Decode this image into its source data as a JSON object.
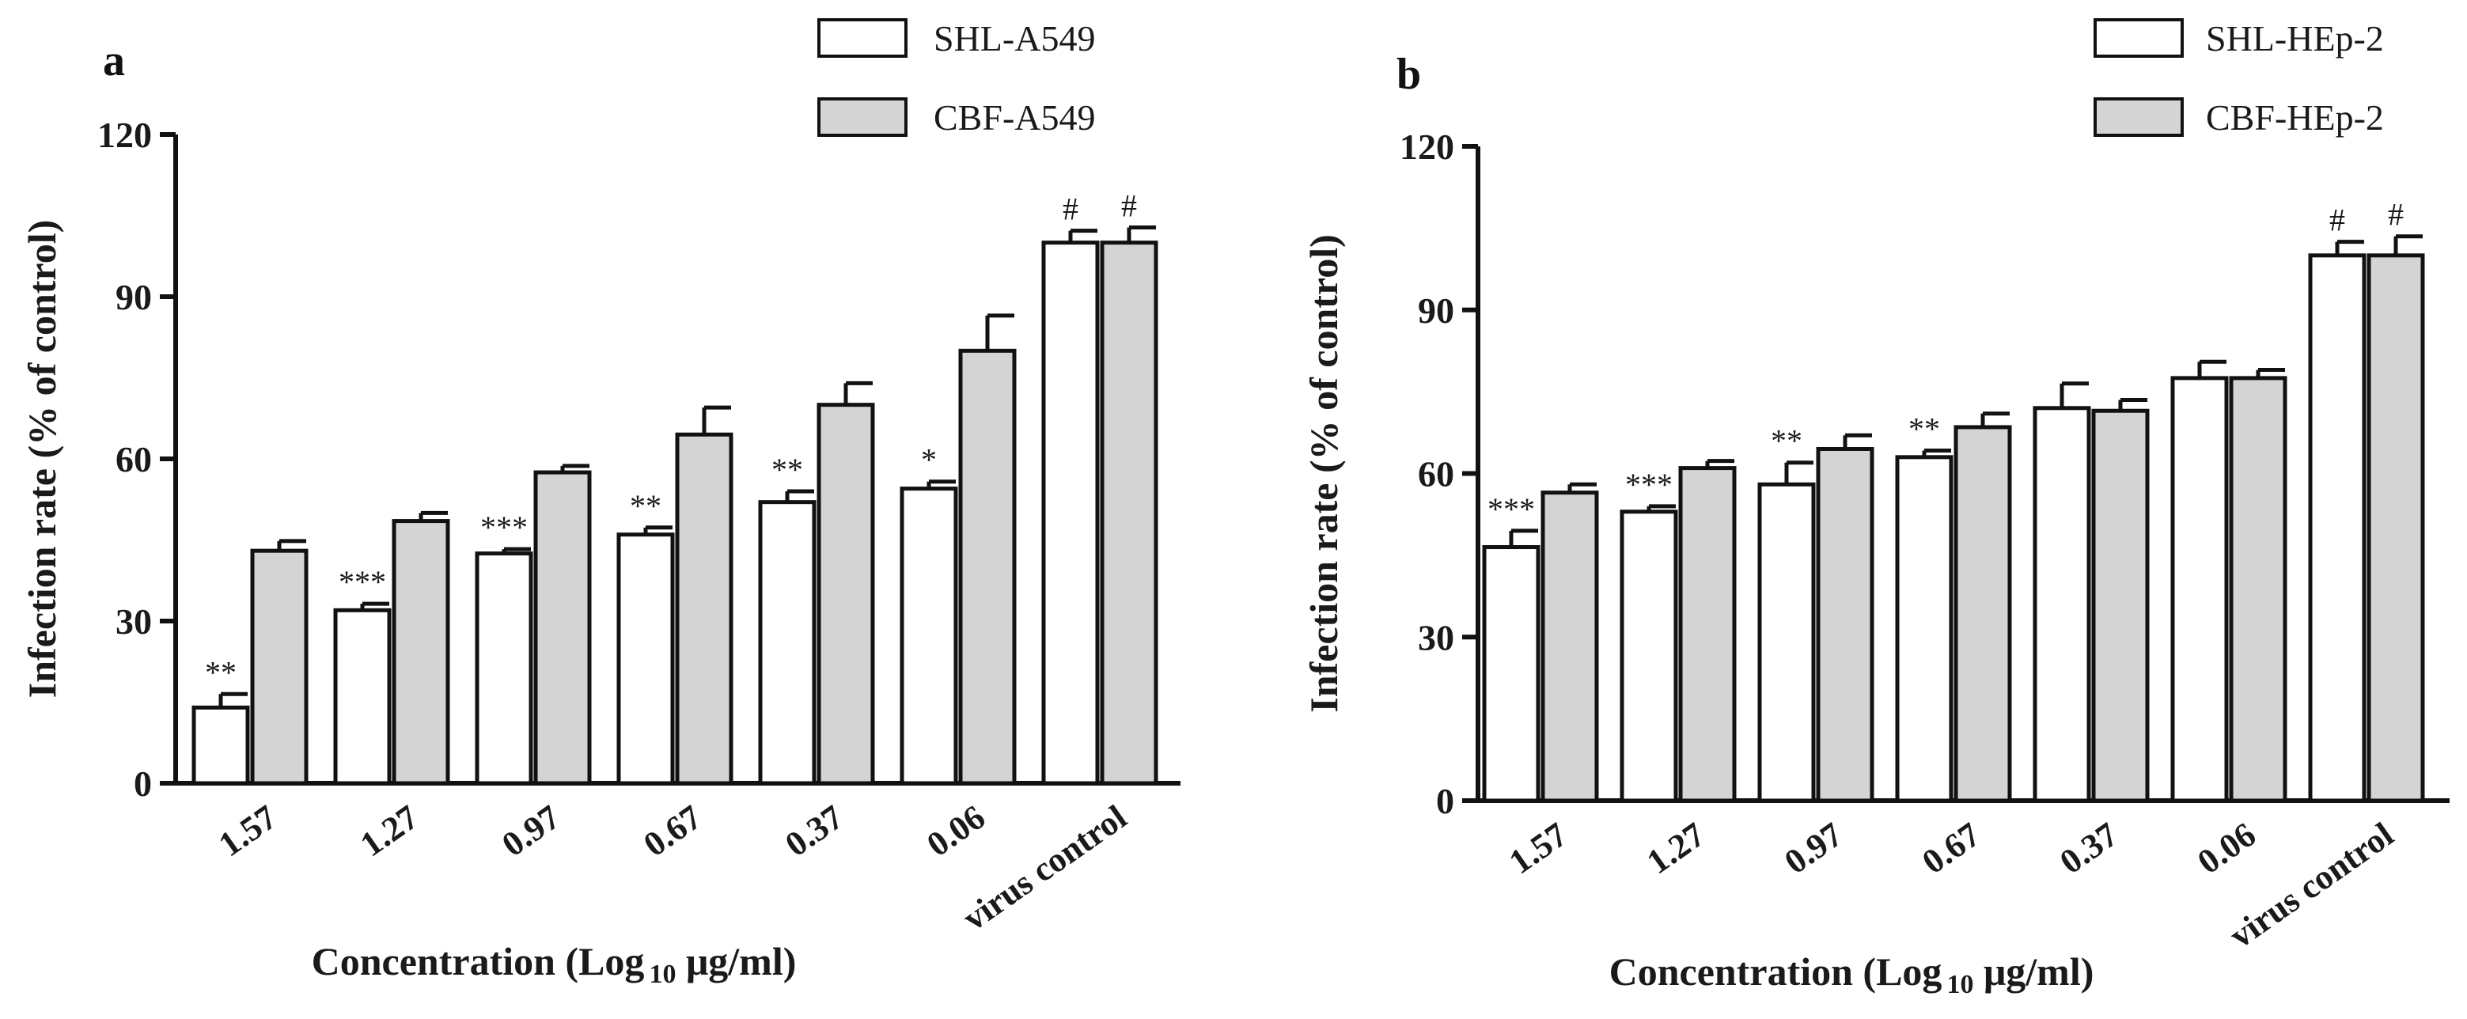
{
  "chart_data": [
    {
      "type": "bar",
      "panel_label": "a",
      "categories": [
        "1.57",
        "1.27",
        "0.97",
        "0.67",
        "0.37",
        "0.06",
        "virus control"
      ],
      "series": [
        {
          "name": "SHL-A549",
          "color": "#ffffff",
          "values": [
            14,
            32,
            42.5,
            46,
            52,
            54.5,
            100
          ],
          "errors": [
            2.5,
            1.2,
            0.8,
            1.3,
            2,
            1.3,
            2.2
          ],
          "sig": [
            "**",
            "***",
            "***",
            "**",
            "**",
            "*",
            "#"
          ]
        },
        {
          "name": "CBF-A549",
          "color": "#d4d4d4",
          "values": [
            43,
            48.5,
            57.5,
            64.5,
            70,
            80,
            100
          ],
          "errors": [
            1.8,
            1.5,
            1.2,
            5,
            4,
            6.5,
            2.8
          ],
          "sig": [
            "",
            "",
            "",
            "",
            "",
            "",
            "#"
          ]
        }
      ],
      "ylabel": "Infection rate (% of control)",
      "xlabel_main": "Concentration (Log",
      "xlabel_sub": "10",
      "xlabel_tail": " μg/ml)",
      "ylim": [
        0,
        120
      ],
      "yticks": [
        "0",
        "30",
        "60",
        "90",
        "120"
      ],
      "legend_position": "top-right"
    },
    {
      "type": "bar",
      "panel_label": "b",
      "categories": [
        "1.57",
        "1.27",
        "0.97",
        "0.67",
        "0.37",
        "0.06",
        "virus control"
      ],
      "series": [
        {
          "name": "SHL-HEp-2",
          "color": "#ffffff",
          "values": [
            46.5,
            53,
            58,
            63,
            72,
            77.5,
            100
          ],
          "errors": [
            3,
            1,
            4,
            1.2,
            4.5,
            3,
            2.5
          ],
          "sig": [
            "***",
            "***",
            "**",
            "**",
            "",
            "",
            "#"
          ]
        },
        {
          "name": "CBF-HEp-2",
          "color": "#d4d4d4",
          "values": [
            56.5,
            61,
            64.5,
            68.5,
            71.5,
            77.5,
            100
          ],
          "errors": [
            1.5,
            1.3,
            2.5,
            2.5,
            2,
            1.5,
            3.5
          ],
          "sig": [
            "",
            "",
            "",
            "",
            "",
            "",
            "#"
          ]
        }
      ],
      "ylabel": "Infection rate (% of control)",
      "xlabel_main": "Concentration (Log",
      "xlabel_sub": "10",
      "xlabel_tail": " μg/ml)",
      "ylim": [
        0,
        120
      ],
      "yticks": [
        "0",
        "30",
        "60",
        "90",
        "120"
      ],
      "legend_position": "top-right"
    }
  ]
}
